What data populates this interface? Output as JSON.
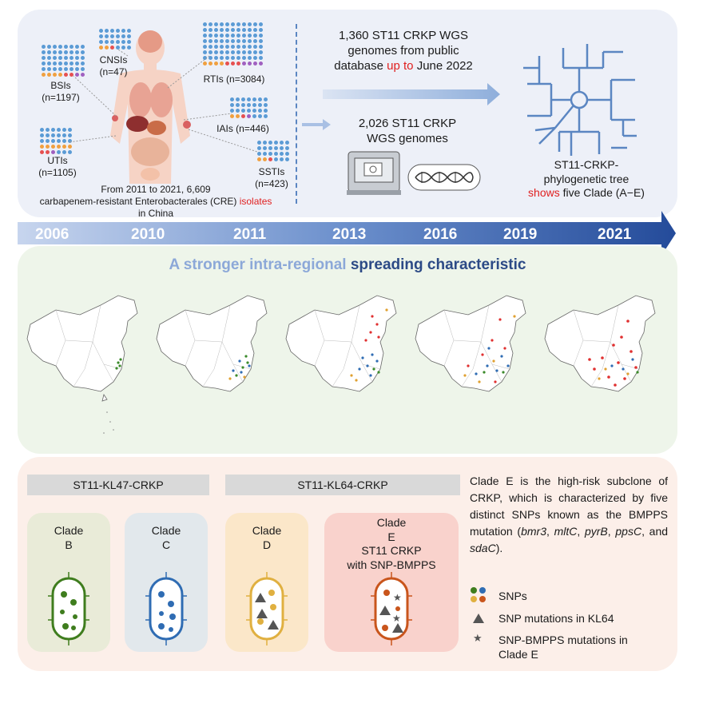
{
  "top": {
    "bsis": "BSIs\n(n=1197)",
    "cnsis": "CNSIs\n(n=47)",
    "rtis": "RTIs (n=3084)",
    "iais": "IAIs (n=446)",
    "utis": "UTIs\n(n=1105)",
    "sstis": "SSTIs\n(n=423)",
    "caption_a": "From 2011 to 2021, 6,609",
    "caption_b": "carbapenem-resistant Enterobacterales (CRE)",
    "caption_red": "isolates",
    "caption_c": "in China",
    "wgs1_a": "1,360 ST11 CRKP WGS",
    "wgs1_b": "genomes from public",
    "wgs1_c1": "database",
    "wgs1_red": "up to",
    "wgs1_c2": "June 2022",
    "wgs2_a": "2,026 ST11 CRKP",
    "wgs2_b": "WGS genomes",
    "tree_a": "ST11-CRKP-",
    "tree_b": "phylogenetic tree",
    "tree_red": "shows",
    "tree_c": "five Clade (A−E)"
  },
  "timeline": [
    "2006",
    "2010",
    "2011",
    "2013",
    "2016",
    "2019",
    "2021"
  ],
  "middle": {
    "title_a": "A stronger intra-regional",
    "title_b": "spreading characteristic"
  },
  "bottom": {
    "kl47": "ST11-KL47-CRKP",
    "kl64": "ST11-KL64-CRKP",
    "cladeB": "Clade\nB",
    "cladeC": "Clade\nC",
    "cladeD": "Clade\nD",
    "cladeE": "Clade\nE\nST11 CRKP\nwith SNP-BMPPS",
    "desc_1": "Clade E is the high-risk subclone of CRKP, which is characterized by five distinct SNPs known as the BMPPS mutation (",
    "g1": "bmr3",
    "s1": ", ",
    "g2": "mltC",
    "s2": ", ",
    "g3": "pyrB",
    "s3": ",",
    "g4": "ppsC",
    "s4": ", and ",
    "g5": "sdaC",
    "desc_end": ").",
    "legend_snps": "SNPs",
    "legend_kl64": "SNP mutations in KL64",
    "legend_bmpps": "SNP-BMPPS mutations in\nClade E"
  },
  "colors": {
    "top_bg": "#edf0f8",
    "mid_bg": "#eef5ea",
    "bot_bg": "#fcefe9",
    "cladeB": "#3f7d1e",
    "cladeC": "#2f6cb3",
    "cladeD": "#e0b040",
    "cladeE": "#c9551c"
  }
}
